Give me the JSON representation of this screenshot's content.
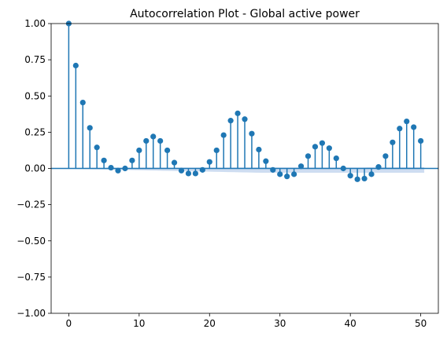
{
  "chart_data": {
    "type": "stem",
    "title": "Autocorrelation Plot - Global active power",
    "xlabel": "",
    "ylabel": "",
    "xlim": [
      -2.5,
      52.5
    ],
    "ylim": [
      -1.0,
      1.0
    ],
    "xticks": [
      0,
      10,
      20,
      30,
      40,
      50
    ],
    "yticks": [
      -1.0,
      -0.75,
      -0.5,
      -0.25,
      0.0,
      0.25,
      0.5,
      0.75,
      1.0
    ],
    "ytick_labels": [
      "−1.00",
      "−0.75",
      "−0.50",
      "−0.25",
      "0.00",
      "0.25",
      "0.50",
      "0.75",
      "1.00"
    ],
    "grid": false,
    "colors": {
      "stem": "#1f77b4",
      "band": "#aec7e8",
      "axis": "#000000"
    },
    "lags": [
      0,
      1,
      2,
      3,
      4,
      5,
      6,
      7,
      8,
      9,
      10,
      11,
      12,
      13,
      14,
      15,
      16,
      17,
      18,
      19,
      20,
      21,
      22,
      23,
      24,
      25,
      26,
      27,
      28,
      29,
      30,
      31,
      32,
      33,
      34,
      35,
      36,
      37,
      38,
      39,
      40,
      41,
      42,
      43,
      44,
      45,
      46,
      47,
      48,
      49,
      50
    ],
    "acf": [
      1.0,
      0.71,
      0.455,
      0.28,
      0.145,
      0.055,
      0.005,
      -0.015,
      0.0,
      0.055,
      0.125,
      0.19,
      0.22,
      0.19,
      0.125,
      0.04,
      -0.015,
      -0.035,
      -0.035,
      -0.01,
      0.045,
      0.125,
      0.23,
      0.33,
      0.38,
      0.34,
      0.24,
      0.13,
      0.05,
      -0.01,
      -0.04,
      -0.055,
      -0.04,
      0.015,
      0.085,
      0.15,
      0.175,
      0.14,
      0.07,
      0.0,
      -0.05,
      -0.075,
      -0.07,
      -0.04,
      0.01,
      0.085,
      0.18,
      0.275,
      0.325,
      0.285,
      0.19
    ],
    "confidence_upper": [
      0.0,
      0.003,
      0.004,
      0.005,
      0.005,
      0.005,
      0.005,
      0.005,
      0.005,
      0.005,
      0.005,
      0.006,
      0.006,
      0.006,
      0.006,
      0.006,
      0.006,
      0.006,
      0.006,
      0.006,
      0.006,
      0.006,
      0.006,
      0.006,
      0.007,
      0.007,
      0.007,
      0.007,
      0.007,
      0.007,
      0.007,
      0.007,
      0.007,
      0.007,
      0.007,
      0.007,
      0.007,
      0.007,
      0.007,
      0.007,
      0.007,
      0.007,
      0.007,
      0.008,
      0.008,
      0.008,
      0.008,
      0.008,
      0.008,
      0.008,
      0.008
    ],
    "confidence_lower": [
      0.0,
      -0.003,
      -0.004,
      -0.005,
      -0.006,
      -0.007,
      -0.008,
      -0.009,
      -0.01,
      -0.011,
      -0.012,
      -0.013,
      -0.014,
      -0.015,
      -0.016,
      -0.017,
      -0.018,
      -0.019,
      -0.02,
      -0.021,
      -0.022,
      -0.023,
      -0.024,
      -0.025,
      -0.026,
      -0.027,
      -0.028,
      -0.029,
      -0.03,
      -0.03,
      -0.03,
      -0.03,
      -0.03,
      -0.03,
      -0.03,
      -0.03,
      -0.03,
      -0.03,
      -0.03,
      -0.03,
      -0.03,
      -0.03,
      -0.03,
      -0.03,
      -0.03,
      -0.03,
      -0.03,
      -0.03,
      -0.03,
      -0.03,
      -0.03
    ]
  }
}
